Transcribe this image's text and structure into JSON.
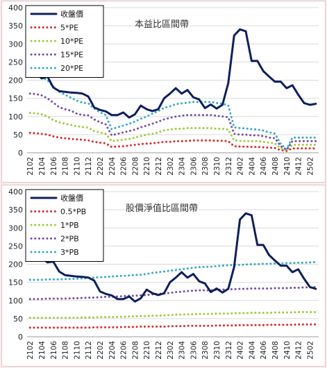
{
  "chart_data": [
    {
      "type": "line",
      "title": "本益比區間帶",
      "ylim": [
        0,
        400
      ],
      "yticks": [
        0,
        50,
        100,
        150,
        200,
        250,
        300,
        350,
        400
      ],
      "grid": "horizontal",
      "legend_position": "top-left",
      "categories": [
        "2102",
        "2103",
        "2104",
        "2105",
        "2106",
        "2107",
        "2108",
        "2109",
        "2110",
        "2111",
        "2112",
        "2201",
        "2202",
        "2203",
        "2204",
        "2205",
        "2206",
        "2207",
        "2208",
        "2209",
        "2210",
        "2211",
        "2212",
        "2301",
        "2302",
        "2303",
        "2304",
        "2305",
        "2306",
        "2307",
        "2308",
        "2309",
        "2310",
        "2311",
        "2312",
        "2401",
        "2402",
        "2403",
        "2404",
        "2405",
        "2406",
        "2407",
        "2408",
        "2409",
        "2410",
        "2411",
        "2412",
        "2501",
        "2502",
        "2503"
      ],
      "xtick_labels": [
        "2102",
        "2104",
        "2106",
        "2108",
        "2110",
        "2112",
        "2202",
        "2204",
        "2206",
        "2208",
        "2210",
        "2212",
        "2302",
        "2304",
        "2306",
        "2308",
        "2310",
        "2312",
        "2402",
        "2404",
        "2406",
        "2408",
        "2410",
        "2412",
        "2502"
      ],
      "series": [
        {
          "name": "收盤價",
          "color": "#0d1f5c",
          "style": "solid",
          "values": [
            215,
            220,
            205,
            210,
            180,
            170,
            168,
            166,
            165,
            163,
            155,
            125,
            118,
            114,
            104,
            104,
            111,
            97,
            106,
            130,
            120,
            115,
            120,
            150,
            163,
            178,
            163,
            173,
            153,
            147,
            123,
            133,
            122,
            132,
            192,
            323,
            340,
            335,
            253,
            253,
            225,
            210,
            196,
            196,
            178,
            186,
            160,
            137,
            132,
            135
          ]
        },
        {
          "name": "5*PE",
          "color": "#d42e2e",
          "style": "dotted",
          "values": [
            55,
            54,
            52,
            50,
            45,
            42,
            40,
            38,
            37,
            36,
            34,
            30,
            28,
            26,
            16,
            17,
            18,
            20,
            22,
            24,
            25,
            26,
            28,
            30,
            30,
            32,
            32,
            33,
            34,
            34,
            34,
            34,
            33,
            33,
            32,
            18,
            17,
            17,
            16,
            16,
            15,
            14,
            13,
            7,
            5,
            12,
            12,
            12,
            12,
            12
          ]
        },
        {
          "name": "10*PE",
          "color": "#9ecc3b",
          "style": "dotted",
          "values": [
            110,
            109,
            106,
            100,
            90,
            84,
            80,
            77,
            73,
            71,
            69,
            60,
            56,
            52,
            32,
            34,
            36,
            38,
            42,
            46,
            50,
            52,
            56,
            62,
            64,
            66,
            66,
            68,
            68,
            68,
            68,
            68,
            66,
            66,
            64,
            34,
            33,
            32,
            32,
            32,
            30,
            28,
            26,
            12,
            6,
            22,
            22,
            22,
            22,
            22
          ]
        },
        {
          "name": "15*PE",
          "color": "#7b4ca3",
          "style": "dotted",
          "values": [
            163,
            162,
            158,
            150,
            138,
            126,
            120,
            116,
            108,
            104,
            103,
            92,
            84,
            78,
            48,
            52,
            56,
            60,
            64,
            70,
            75,
            80,
            86,
            92,
            96,
            100,
            102,
            104,
            104,
            104,
            104,
            104,
            102,
            100,
            98,
            52,
            50,
            50,
            48,
            48,
            46,
            42,
            40,
            18,
            8,
            32,
            32,
            32,
            32,
            32
          ]
        },
        {
          "name": "20*PE",
          "color": "#35a8c8",
          "style": "dotted",
          "values": [
            215,
            214,
            208,
            200,
            182,
            168,
            160,
            152,
            144,
            138,
            136,
            122,
            112,
            104,
            65,
            70,
            75,
            80,
            86,
            94,
            100,
            108,
            115,
            124,
            128,
            134,
            136,
            138,
            140,
            140,
            140,
            140,
            137,
            135,
            131,
            70,
            68,
            67,
            65,
            64,
            61,
            56,
            53,
            24,
            10,
            42,
            42,
            42,
            42,
            42
          ]
        }
      ]
    },
    {
      "type": "line",
      "title": "股價淨值比區間帶",
      "ylim": [
        0,
        400
      ],
      "yticks": [
        0,
        50,
        100,
        150,
        200,
        250,
        300,
        350,
        400
      ],
      "grid": "horizontal",
      "legend_position": "top-left",
      "categories": [
        "2102",
        "2103",
        "2104",
        "2105",
        "2106",
        "2107",
        "2108",
        "2109",
        "2110",
        "2111",
        "2112",
        "2201",
        "2202",
        "2203",
        "2204",
        "2205",
        "2206",
        "2207",
        "2208",
        "2209",
        "2210",
        "2211",
        "2212",
        "2301",
        "2302",
        "2303",
        "2304",
        "2305",
        "2306",
        "2307",
        "2308",
        "2309",
        "2310",
        "2311",
        "2312",
        "2401",
        "2402",
        "2403",
        "2404",
        "2405",
        "2406",
        "2407",
        "2408",
        "2409",
        "2410",
        "2411",
        "2412",
        "2501",
        "2502",
        "2503"
      ],
      "xtick_labels": [
        "2102",
        "2104",
        "2106",
        "2108",
        "2110",
        "2112",
        "2202",
        "2204",
        "2206",
        "2208",
        "2210",
        "2212",
        "2302",
        "2304",
        "2306",
        "2308",
        "2310",
        "2312",
        "2402",
        "2404",
        "2406",
        "2408",
        "2410",
        "2412",
        "2502"
      ],
      "series": [
        {
          "name": "收盤價",
          "color": "#0d1f5c",
          "style": "solid",
          "values": [
            218,
            215,
            217,
            205,
            207,
            180,
            170,
            168,
            166,
            165,
            163,
            155,
            125,
            118,
            114,
            104,
            104,
            111,
            97,
            106,
            130,
            120,
            115,
            120,
            150,
            163,
            178,
            163,
            173,
            153,
            147,
            123,
            133,
            122,
            132,
            192,
            323,
            340,
            335,
            253,
            253,
            225,
            210,
            196,
            196,
            178,
            186,
            160,
            137,
            132
          ]
        },
        {
          "name": "0.5*PB",
          "color": "#d42e2e",
          "style": "dotted",
          "values": [
            25,
            25,
            25,
            25,
            25,
            25,
            25,
            25,
            25,
            25,
            25,
            26,
            26,
            26,
            26,
            26,
            27,
            27,
            27,
            28,
            28,
            28,
            28,
            28,
            29,
            29,
            29,
            30,
            30,
            30,
            30,
            30,
            31,
            31,
            31,
            31,
            32,
            32,
            32,
            32,
            32,
            33,
            33,
            33,
            33,
            33,
            34,
            34,
            34,
            34
          ]
        },
        {
          "name": "1*PB",
          "color": "#9ecc3b",
          "style": "dotted",
          "values": [
            52,
            52,
            52,
            52,
            52,
            52,
            52,
            52,
            52,
            53,
            53,
            53,
            54,
            54,
            54,
            55,
            55,
            56,
            56,
            57,
            57,
            58,
            58,
            59,
            60,
            61,
            61,
            62,
            62,
            63,
            63,
            63,
            64,
            64,
            64,
            65,
            65,
            65,
            66,
            66,
            66,
            66,
            67,
            67,
            67,
            67,
            68,
            68,
            68,
            68
          ]
        },
        {
          "name": "2*PB",
          "color": "#7b4ca3",
          "style": "dotted",
          "values": [
            104,
            104,
            104,
            105,
            105,
            105,
            105,
            106,
            106,
            107,
            108,
            108,
            109,
            110,
            110,
            111,
            112,
            113,
            113,
            114,
            115,
            117,
            118,
            119,
            121,
            123,
            124,
            126,
            127,
            128,
            128,
            128,
            129,
            130,
            131,
            131,
            132,
            132,
            133,
            133,
            133,
            133,
            134,
            134,
            134,
            135,
            135,
            136,
            136,
            137
          ]
        },
        {
          "name": "3*PB",
          "color": "#35a8c8",
          "style": "dotted",
          "values": [
            157,
            157,
            157,
            158,
            158,
            158,
            159,
            159,
            160,
            161,
            162,
            163,
            164,
            165,
            166,
            167,
            168,
            169,
            170,
            171,
            173,
            176,
            178,
            180,
            182,
            184,
            186,
            188,
            190,
            192,
            193,
            193,
            195,
            196,
            197,
            198,
            198,
            199,
            200,
            200,
            201,
            201,
            202,
            202,
            203,
            203,
            204,
            204,
            205,
            206
          ]
        }
      ]
    }
  ]
}
